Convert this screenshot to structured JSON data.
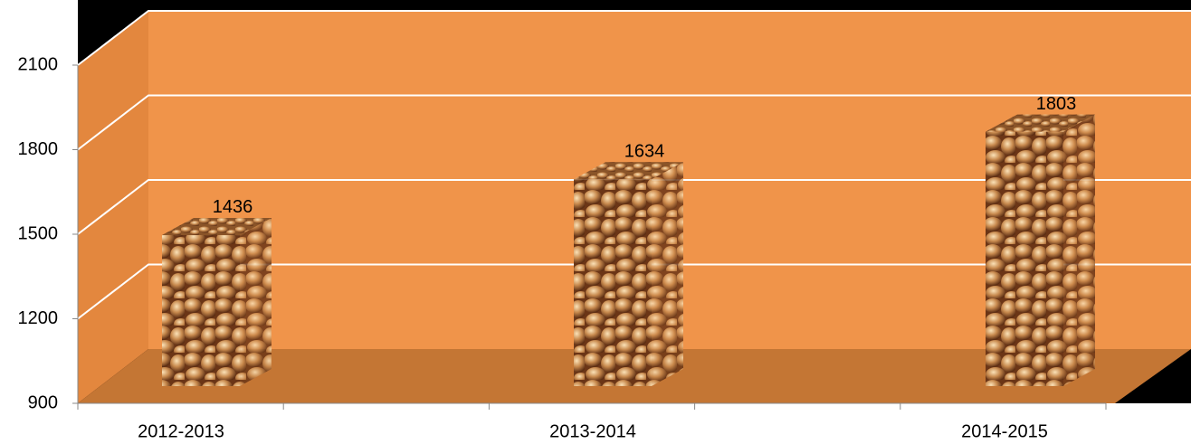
{
  "chart_data": {
    "type": "bar3d",
    "categories": [
      "2012-2013",
      "2013-2014",
      "2014-2015"
    ],
    "values": [
      1436,
      1634,
      1803
    ],
    "ylim": [
      900,
      2100
    ],
    "yticks": [
      900,
      1200,
      1500,
      1800,
      2100
    ],
    "grid": true,
    "wall_color": "#f0944a",
    "floor_color": "#c47634",
    "grid_color": "#ffffff"
  }
}
